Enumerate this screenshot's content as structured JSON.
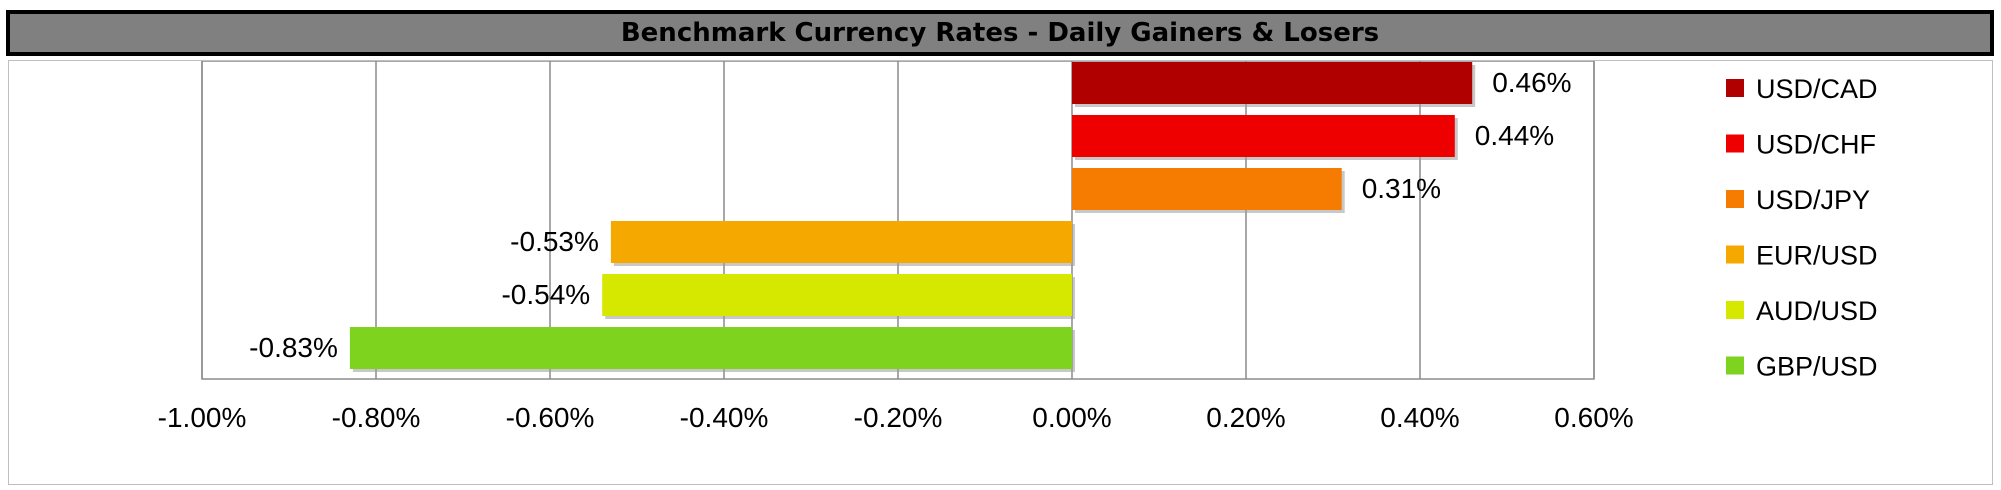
{
  "header": {
    "title": "Benchmark Currency Rates - Daily Gainers & Losers"
  },
  "chart_data": {
    "type": "bar",
    "orientation": "horizontal",
    "title": "Benchmark Currency Rates - Daily Gainers & Losers",
    "xlabel": "",
    "ylabel": "",
    "xlim": [
      -1.0,
      0.6
    ],
    "x_ticks": [
      -1.0,
      -0.8,
      -0.6,
      -0.4,
      -0.2,
      0.0,
      0.2,
      0.4,
      0.6
    ],
    "x_tick_labels": [
      "-1.00%",
      "-0.80%",
      "-0.60%",
      "-0.40%",
      "-0.20%",
      "0.00%",
      "0.20%",
      "0.40%",
      "0.60%"
    ],
    "grid": "vertical",
    "legend_position": "right",
    "series": [
      {
        "name": "USD/CAD",
        "value": 0.46,
        "label": "0.46%",
        "color": "#b00000"
      },
      {
        "name": "USD/CHF",
        "value": 0.44,
        "label": "0.44%",
        "color": "#ee0000"
      },
      {
        "name": "USD/JPY",
        "value": 0.31,
        "label": "0.31%",
        "color": "#f57c00"
      },
      {
        "name": "EUR/USD",
        "value": -0.53,
        "label": "-0.53%",
        "color": "#f5a800"
      },
      {
        "name": "AUD/USD",
        "value": -0.54,
        "label": "-0.54%",
        "color": "#d7e800"
      },
      {
        "name": "GBP/USD",
        "value": -0.83,
        "label": "-0.83%",
        "color": "#7ed31e"
      }
    ]
  }
}
